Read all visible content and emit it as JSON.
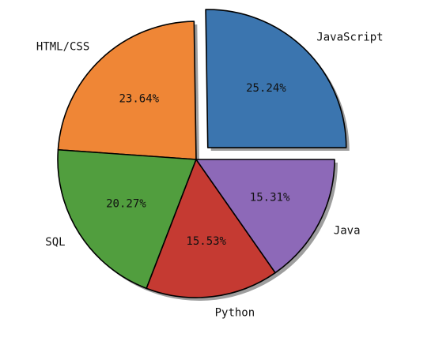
{
  "chart_data": {
    "type": "pie",
    "title": "",
    "categories": [
      "JavaScript",
      "HTML/CSS",
      "SQL",
      "Python",
      "Java"
    ],
    "values": [
      25.24,
      23.64,
      20.27,
      15.53,
      15.31
    ],
    "percent_labels": [
      "25.24%",
      "23.64%",
      "20.27%",
      "15.53%",
      "15.31%"
    ],
    "colors": [
      "#3b75af",
      "#ef8636",
      "#519e3e",
      "#c53a32",
      "#8d69b8"
    ],
    "explode": [
      0.12,
      0,
      0,
      0,
      0
    ],
    "start_angle_deg": 0,
    "direction": "counterclockwise",
    "shadow": true,
    "legend": "none"
  }
}
